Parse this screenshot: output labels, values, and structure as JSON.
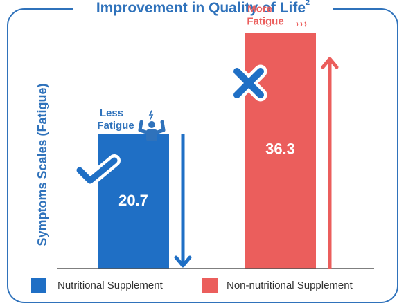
{
  "chart_data": {
    "type": "bar",
    "title": "Improvement in Quality of Life",
    "title_superscript": "2",
    "ylabel": "Symptoms Scales (Fatigue)",
    "xlabel": "",
    "ylim": [
      0,
      40
    ],
    "grid": false,
    "categories": [
      "Nutritional Supplement",
      "Non-nutritional Supplement"
    ],
    "values": [
      20.7,
      36.3
    ],
    "value_labels": [
      "20.7",
      "36.3"
    ],
    "colors": [
      "#1f6fc5",
      "#eb5e5c"
    ],
    "annotations": [
      {
        "text_line1": "Less",
        "text_line2": "Fatigue",
        "icon": "strong-person-icon",
        "marker": "checkmark-icon",
        "arrow": "down-arrow-icon",
        "color": "#2f72bb"
      },
      {
        "text_line1": "More",
        "text_line2": "Fatigue",
        "icon": "tired-person-icon",
        "marker": "cross-icon",
        "arrow": "up-arrow-icon",
        "color": "#eb5e5c"
      }
    ],
    "legend": {
      "position": "bottom",
      "entries": [
        "Nutritional Supplement",
        "Non-nutritional Supplement"
      ]
    }
  },
  "style": {
    "frame_color": "#2f72bb",
    "axis_color": "#555555",
    "value_label_color": "#ffffff",
    "arrow_blue": "#1f6fc5",
    "arrow_red": "#eb5e5c",
    "icon_blue": "#2f72bb",
    "icon_red": "#eb5e5c"
  }
}
